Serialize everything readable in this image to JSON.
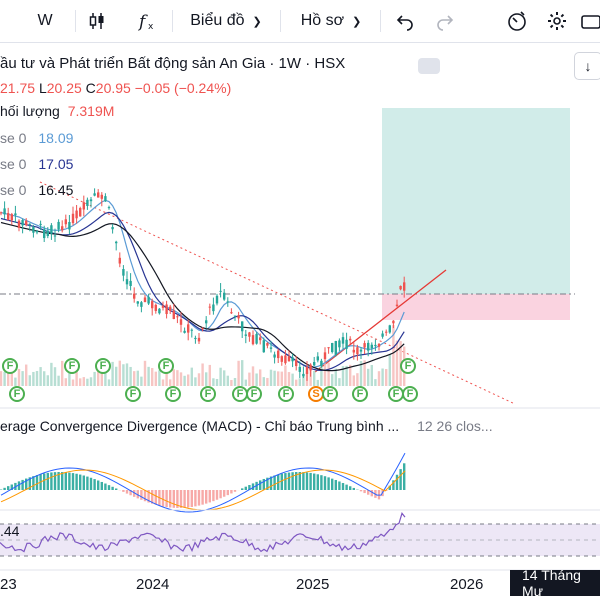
{
  "toolbar": {
    "interval": "W",
    "chart_type_label": "Biểu đồ",
    "profile_label": "Hồ sơ"
  },
  "symbol": {
    "title": "ầu tư và Phát triển Bất động sản An Gia · 1W · HSX",
    "ohlc": {
      "open_tail": "21.75",
      "low_label": "L",
      "low": "20.25",
      "close_label": "C",
      "close": "20.95",
      "change": "−0.05 (−0.24%)"
    }
  },
  "volume_legend": {
    "label": "hối lượng",
    "value": "7.319M"
  },
  "ma_legends": [
    {
      "label": "se 0",
      "value": "18.09",
      "color": "#5b9bd5"
    },
    {
      "label": "se 0",
      "value": "17.05",
      "color": "#283593"
    },
    {
      "label": "se 0",
      "value": "16.45",
      "color": "#131722"
    }
  ],
  "macd": {
    "title": "erage Convergence Divergence (MACD) - Chỉ báo Trung bình ...",
    "params": "12 26 clos..."
  },
  "rsi": {
    "value": ".44"
  },
  "time_axis": {
    "labels": [
      "23",
      "2024",
      "2025",
      "2026"
    ]
  },
  "crosshair_date": "14 Tháng Mư",
  "flags": [
    {
      "t": "F"
    },
    {
      "t": "F"
    },
    {
      "t": "F"
    },
    {
      "t": "F"
    },
    {
      "t": "F"
    },
    {
      "t": "F"
    },
    {
      "t": "F"
    },
    {
      "t": "F"
    },
    {
      "t": "F"
    },
    {
      "t": "S"
    },
    {
      "t": "F"
    },
    {
      "t": "F"
    },
    {
      "t": "F"
    },
    {
      "t": "F"
    },
    {
      "t": "F"
    },
    {
      "t": "F"
    },
    {
      "t": "F"
    }
  ],
  "colors": {
    "up": "#26a69a",
    "down": "#ef5350",
    "ma_fast": "#5b9bd5",
    "ma_mid": "#283593",
    "ma_slow": "#131722"
  }
}
